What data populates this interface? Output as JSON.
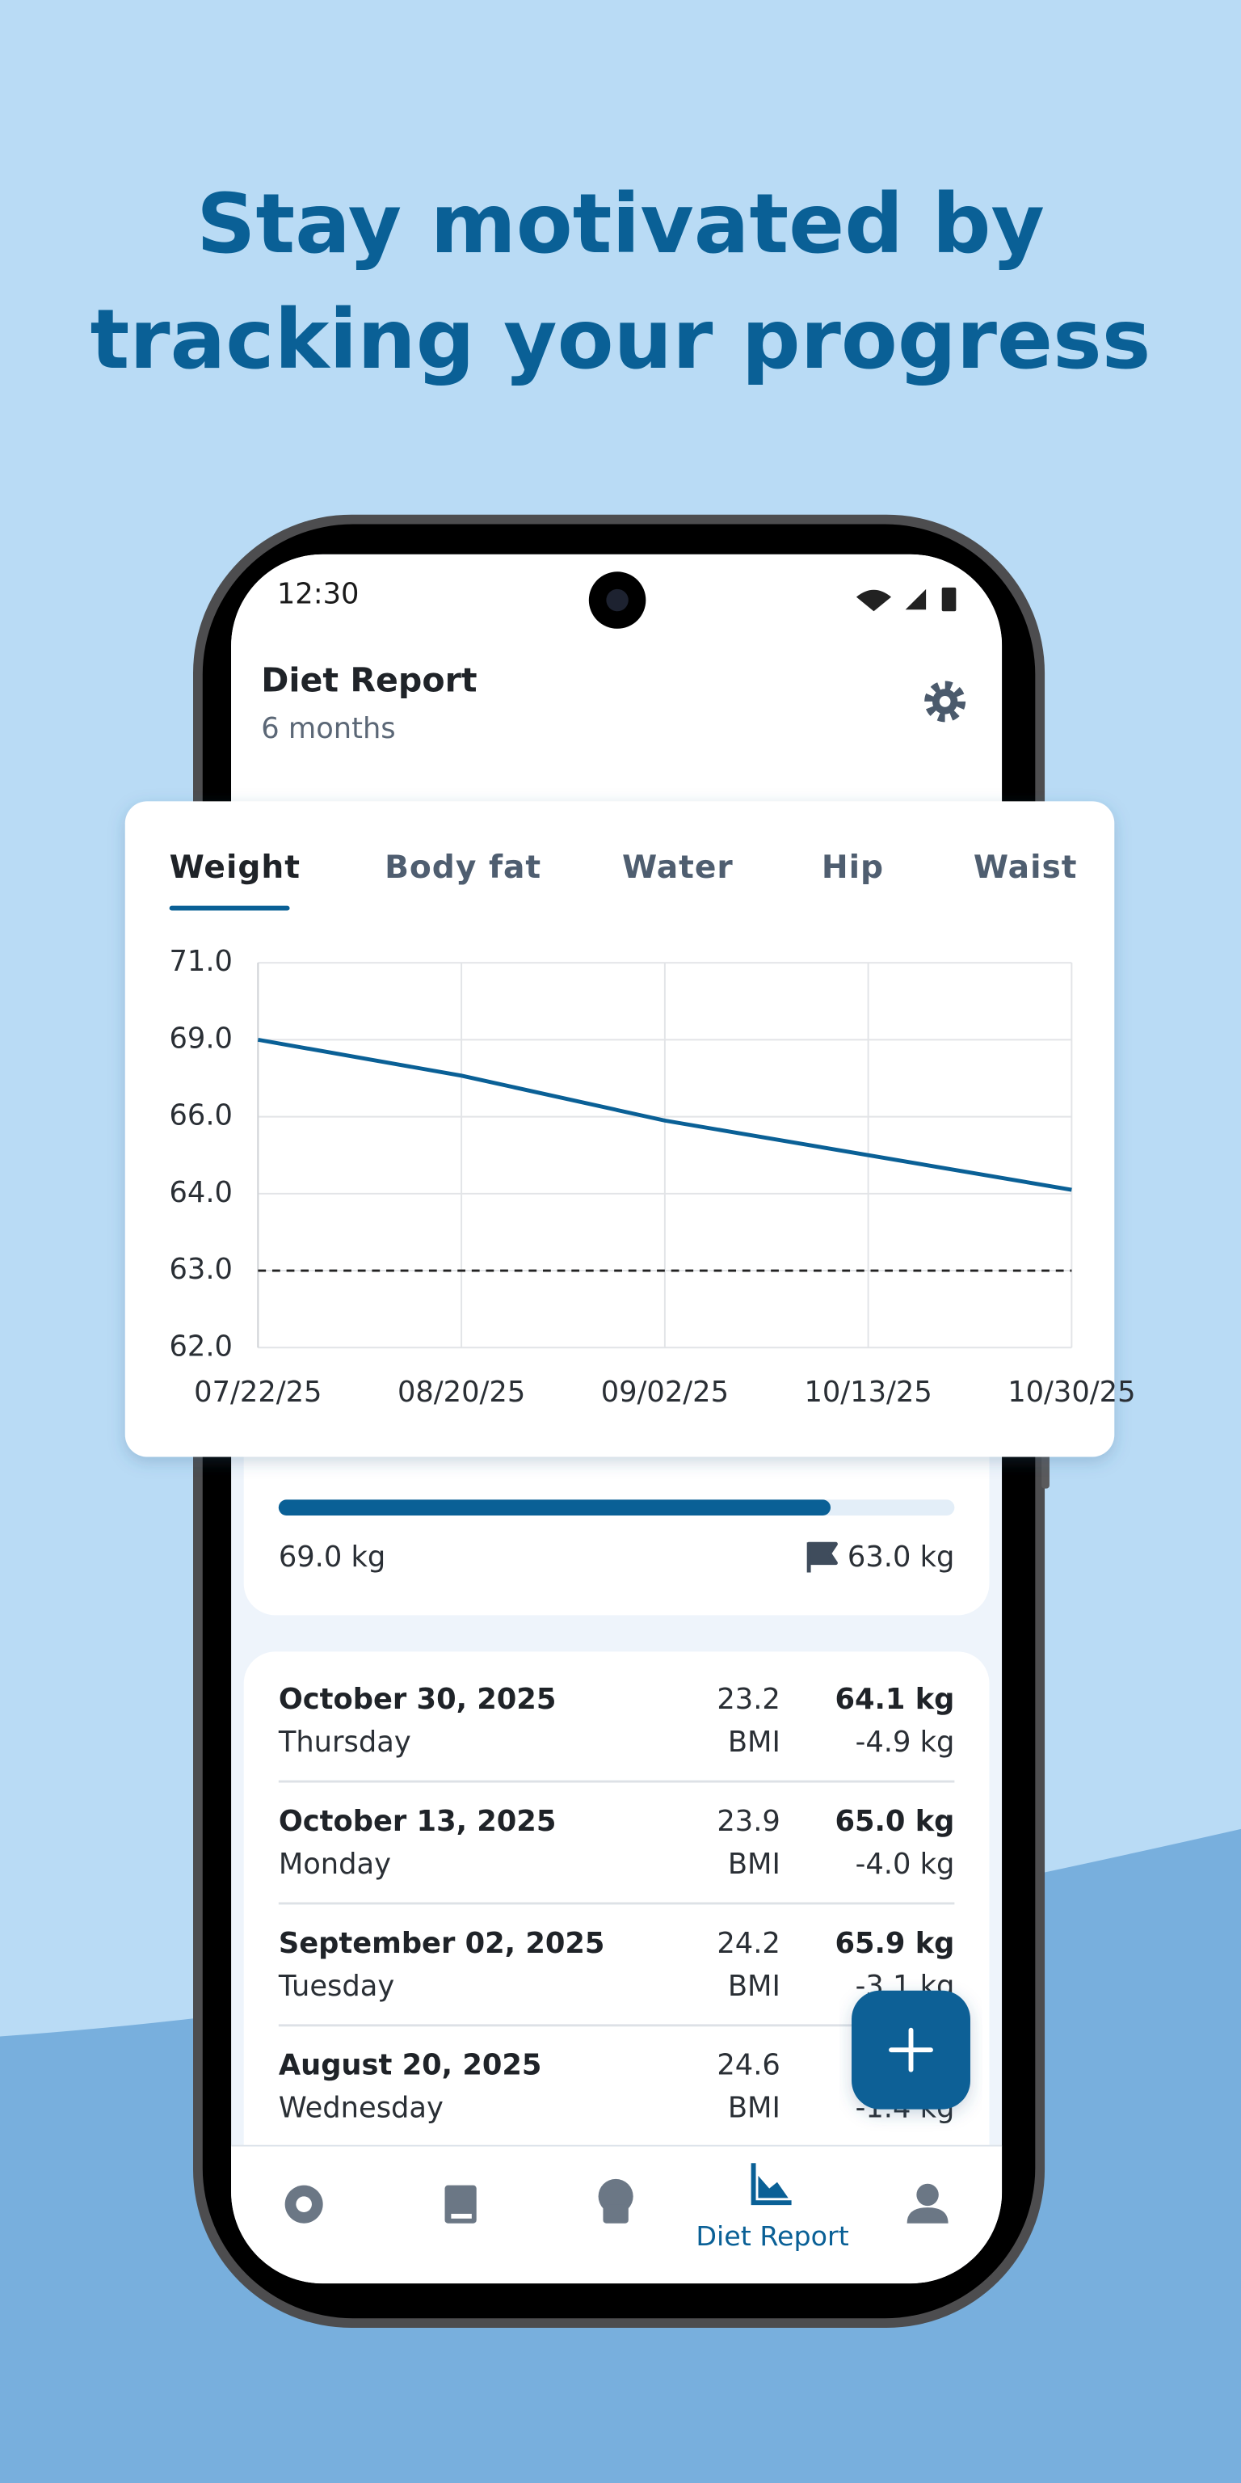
{
  "headline": [
    "Stay motivated by",
    "tracking your progress"
  ],
  "status_bar": {
    "time": "12:30"
  },
  "header": {
    "title": "Diet Report",
    "subtitle": "6 months"
  },
  "tabs": [
    "Weight",
    "Body fat",
    "Water",
    "Hip",
    "Waist"
  ],
  "chart_data": {
    "type": "line",
    "categories": [
      "07/22/25",
      "08/20/25",
      "09/02/25",
      "10/13/25",
      "10/30/25"
    ],
    "series": [
      {
        "color": "#0a6096",
        "values": [
          69.0,
          67.6,
          65.9,
          65.0,
          64.1
        ]
      }
    ],
    "goal": 63.0,
    "ylim": [
      62,
      71
    ],
    "yticks": [
      {
        "value": 71,
        "label": "71.0"
      },
      {
        "value": 69,
        "label": "69.0"
      },
      {
        "value": 66,
        "label": "66.0"
      },
      {
        "value": 64,
        "label": "64.0"
      },
      {
        "value": 63,
        "label": "63.0"
      },
      {
        "value": 62,
        "label": "62.0"
      }
    ],
    "grid": true
  },
  "progress": {
    "start_label": "69.0 kg",
    "goal_label": "63.0 kg"
  },
  "entries": [
    {
      "date": "October 30, 2025",
      "day": "Thursday",
      "bmi": "23.2",
      "bmi_label": "BMI",
      "weight": "64.1 kg",
      "change": "-4.9 kg"
    },
    {
      "date": "October 13, 2025",
      "day": "Monday",
      "bmi": "23.9",
      "bmi_label": "BMI",
      "weight": "65.0 kg",
      "change": "-4.0 kg"
    },
    {
      "date": "September 02, 2025",
      "day": "Tuesday",
      "bmi": "24.2",
      "bmi_label": "BMI",
      "weight": "65.9 kg",
      "change": "-3.1 kg"
    },
    {
      "date": "August 20, 2025",
      "day": "Wednesday",
      "bmi": "24.6",
      "bmi_label": "BMI",
      "change": "-1.4 kg"
    }
  ],
  "nav": {
    "active_label": "Diet Report"
  }
}
